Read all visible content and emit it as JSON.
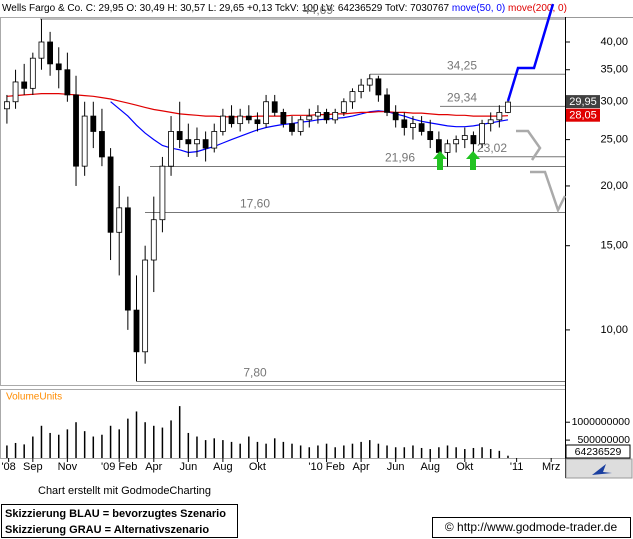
{
  "chart_data": [
    {
      "type": "candlestick",
      "title": "Wells Fargo & Co.",
      "subtitle": "C: 29,95 O: 30,49 H: 30,57 L: 29,65 +0,13 TckV: 100 LV: 64236529 TotV: 7030767",
      "x": [
        6.5,
        7,
        7.5,
        8,
        8.5,
        9,
        9.5,
        10,
        10.5,
        11,
        11.5,
        12,
        12.5,
        13,
        13.5,
        14,
        14.5,
        15,
        15.5,
        16,
        16.5,
        17,
        17.5,
        18,
        18.5,
        19,
        19.5,
        20,
        20.5,
        21,
        21.5,
        22,
        22.5,
        23,
        23.5,
        24,
        24.5,
        25,
        25.5,
        26,
        26.5,
        27,
        27.5,
        28,
        28.5,
        29,
        29.5,
        30,
        30.5,
        31,
        31.5,
        32,
        32.5,
        33,
        33.5,
        34,
        34.5,
        35,
        35.5
      ],
      "open": [
        29,
        30,
        33,
        32,
        37,
        40,
        36,
        35,
        31,
        22,
        28,
        26,
        23,
        16,
        18,
        11,
        9,
        14,
        17,
        22,
        26,
        25,
        24.5,
        25,
        24,
        26,
        28,
        27,
        28,
        27.5,
        27,
        30,
        28.5,
        27,
        26,
        27.5,
        28,
        28.5,
        27.5,
        28.5,
        30,
        31.5,
        32.5,
        33.5,
        31,
        28.5,
        27.5,
        26.5,
        27,
        26,
        25,
        23.5,
        24.5,
        25,
        25.5,
        24.5,
        27,
        27.5,
        28.5
      ],
      "high": [
        31,
        35,
        36,
        38,
        44.69,
        42,
        39,
        38,
        34,
        30,
        30,
        29,
        24,
        20,
        19,
        13,
        15,
        19,
        23,
        28,
        30,
        27,
        26.5,
        26,
        27,
        29,
        29.5,
        29,
        29.5,
        28.5,
        31,
        31,
        29,
        28,
        28,
        29,
        29.5,
        29,
        29,
        30.5,
        32,
        33.5,
        34.25,
        34,
        32,
        29.5,
        28.5,
        28,
        28,
        27.5,
        26,
        25,
        25.5,
        26.5,
        26,
        27.5,
        28.5,
        29.5,
        30.57
      ],
      "low": [
        27,
        29,
        31,
        31,
        35,
        34,
        32,
        30,
        20,
        21,
        24,
        22,
        14,
        13,
        10,
        7.8,
        8.5,
        12,
        16,
        21,
        24,
        23,
        23,
        22.5,
        23.5,
        25.5,
        26.5,
        26,
        27,
        26,
        26.5,
        28,
        26.5,
        25.5,
        25.5,
        26.5,
        27,
        27,
        27,
        28,
        29,
        30.5,
        31.5,
        30,
        28,
        26.5,
        25.5,
        25,
        25.5,
        24,
        22.5,
        21.96,
        23.5,
        24,
        23.02,
        24,
        26,
        26.5,
        28.4
      ],
      "close": [
        30,
        33,
        32,
        37,
        40,
        36,
        35,
        31,
        22,
        28,
        26,
        23,
        16,
        18,
        11,
        9,
        14,
        17,
        22,
        26,
        25,
        24.5,
        25,
        24,
        26,
        28,
        27,
        28,
        27.5,
        27,
        30,
        28.5,
        27,
        26,
        27.5,
        28,
        28.5,
        27.5,
        28.5,
        30,
        31.5,
        32.5,
        33.5,
        31,
        28.5,
        27.5,
        26.5,
        27,
        26,
        25,
        23.5,
        24.5,
        25,
        25.5,
        24.5,
        27,
        27.5,
        28.5,
        29.95
      ],
      "up_color": "#ffffff",
      "down_color": "#000000",
      "series": [
        {
          "name": "move(50, 0)",
          "color": "#0000ff",
          "values": [
            null,
            null,
            null,
            null,
            null,
            null,
            null,
            null,
            null,
            null,
            null,
            null,
            30,
            29,
            28,
            26.8,
            25.8,
            25,
            24.3,
            24,
            23.8,
            23.5,
            23.6,
            23.9,
            24.2,
            24.6,
            25,
            25.4,
            25.8,
            26.2,
            26.5,
            26.7,
            26.9,
            27,
            27.2,
            27.3,
            27.5,
            27.6,
            27.7,
            27.8,
            28,
            28.3,
            28.6,
            28.7,
            28.6,
            28.3,
            28,
            27.6,
            27.3,
            27.1,
            26.9,
            26.7,
            26.6,
            26.6,
            26.7,
            26.9,
            27.1,
            27.3,
            27.5
          ]
        },
        {
          "name": "move(200, 0)",
          "color": "#e00000",
          "values": [
            30.8,
            30.9,
            31,
            31.1,
            31.2,
            31.2,
            31.2,
            31.1,
            31,
            30.9,
            30.8,
            30.6,
            30.4,
            30.1,
            29.8,
            29.5,
            29.2,
            28.9,
            28.7,
            28.5,
            28.3,
            28.2,
            28.1,
            28,
            28,
            27.9,
            27.9,
            27.9,
            27.9,
            28,
            28,
            28,
            28,
            28.1,
            28.1,
            28.1,
            28.2,
            28.2,
            28.3,
            28.3,
            28.4,
            28.5,
            28.5,
            28.6,
            28.6,
            28.5,
            28.5,
            28.4,
            28.4,
            28.3,
            28.2,
            28.2,
            28.1,
            28.1,
            28,
            28,
            28,
            28,
            28.05
          ]
        }
      ],
      "log_y": true,
      "ylim": [
        7.67,
        44.9
      ],
      "yticks": [
        {
          "value": 10,
          "label": "10,00"
        },
        {
          "value": 15,
          "label": "15,00"
        },
        {
          "value": 20,
          "label": "20,00"
        },
        {
          "value": 25,
          "label": "25,00"
        },
        {
          "value": 30,
          "label": "30,00"
        },
        {
          "value": 35,
          "label": "35,00"
        },
        {
          "value": 40,
          "label": "40,00"
        }
      ],
      "xlim": [
        6.1,
        38.8
      ],
      "xticks": [
        {
          "value": 6.6,
          "label": "'08"
        },
        {
          "value": 8,
          "label": "Sep"
        },
        {
          "value": 10,
          "label": "Nov"
        },
        {
          "value": 13,
          "label": "'09 Feb"
        },
        {
          "value": 15,
          "label": "Apr"
        },
        {
          "value": 17,
          "label": "Jun"
        },
        {
          "value": 19,
          "label": "Aug"
        },
        {
          "value": 21,
          "label": "Okt"
        },
        {
          "value": 25,
          "label": "'10 Feb"
        },
        {
          "value": 27,
          "label": "Apr"
        },
        {
          "value": 29,
          "label": "Jun"
        },
        {
          "value": 31,
          "label": "Aug"
        },
        {
          "value": 33,
          "label": "Okt"
        },
        {
          "value": 36,
          "label": "'11"
        },
        {
          "value": 38,
          "label": "Mrz"
        }
      ],
      "levels": [
        {
          "value": 44.69,
          "label": "44,69"
        },
        {
          "value": 34.25,
          "label": "34,25"
        },
        {
          "value": 29.34,
          "label": "29,34"
        },
        {
          "value": 23.02,
          "label": "23,02"
        },
        {
          "value": 21.96,
          "label": "21,96"
        },
        {
          "value": 17.6,
          "label": "17,60"
        },
        {
          "value": 7.8,
          "label": "7,80"
        }
      ],
      "level_color": "#777777",
      "value_tags": [
        {
          "value": 29.95,
          "label": "29,95",
          "color": "#404040"
        },
        {
          "value": 28.05,
          "label": "28,05",
          "color": "#e00000"
        }
      ]
    },
    {
      "type": "bar",
      "ylabel": "VolumeUnits",
      "values": [
        350000000,
        420000000,
        380000000,
        600000000,
        900000000,
        700000000,
        650000000,
        800000000,
        1000000000,
        750000000,
        600000000,
        650000000,
        900000000,
        800000000,
        1100000000,
        1300000000,
        1000000000,
        900000000,
        850000000,
        1050000000,
        1450000000,
        700000000,
        600000000,
        500000000,
        550000000,
        500000000,
        450000000,
        400000000,
        600000000,
        450000000,
        400000000,
        550000000,
        450000000,
        400000000,
        350000000,
        300000000,
        350000000,
        400000000,
        300000000,
        350000000,
        400000000,
        450000000,
        500000000,
        400000000,
        350000000,
        300000000,
        300000000,
        350000000,
        280000000,
        250000000,
        300000000,
        350000000,
        300000000,
        250000000,
        280000000,
        300000000,
        250000000,
        200000000,
        64236529
      ],
      "color": "#000000",
      "ylim": [
        0,
        1900000000
      ],
      "yticks": [
        500000000,
        1000000000
      ],
      "value_tag": "64236529"
    }
  ],
  "footer": {
    "credit": "Chart erstellt mit GodmodeCharting",
    "notes": [
      "Skizzierung BLAU = bevorzugtes Szenario",
      "Skizzierung GRAU = Alternativszenario"
    ],
    "copyright": "© http://www.godmode-trader.de"
  }
}
